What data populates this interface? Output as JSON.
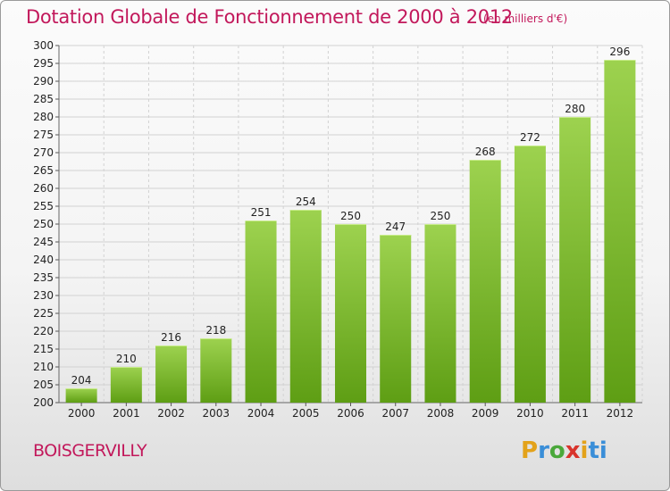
{
  "chart_data": {
    "type": "bar",
    "title": "Dotation Globale de Fonctionnement de 2000 à 2012",
    "subtitle": "(en milliers d'€)",
    "xlabel": "",
    "ylabel": "",
    "ylim": [
      200,
      300
    ],
    "ytick_step": 5,
    "grid": true,
    "categories": [
      "2000",
      "2001",
      "2002",
      "2003",
      "2004",
      "2005",
      "2006",
      "2007",
      "2008",
      "2009",
      "2010",
      "2011",
      "2012"
    ],
    "values": [
      204,
      210,
      216,
      218,
      251,
      254,
      250,
      247,
      250,
      268,
      272,
      280,
      296
    ],
    "bar_color_top": "#9dd24f",
    "bar_color_bottom": "#5e9e14"
  },
  "footer": {
    "commune": "BOISGERVILLY",
    "logo": [
      "P",
      "r",
      "o",
      "x",
      "i",
      "ti"
    ]
  },
  "colors": {
    "title": "#c2185b",
    "grid": "#d2d2d2",
    "axis_text": "#222222"
  }
}
